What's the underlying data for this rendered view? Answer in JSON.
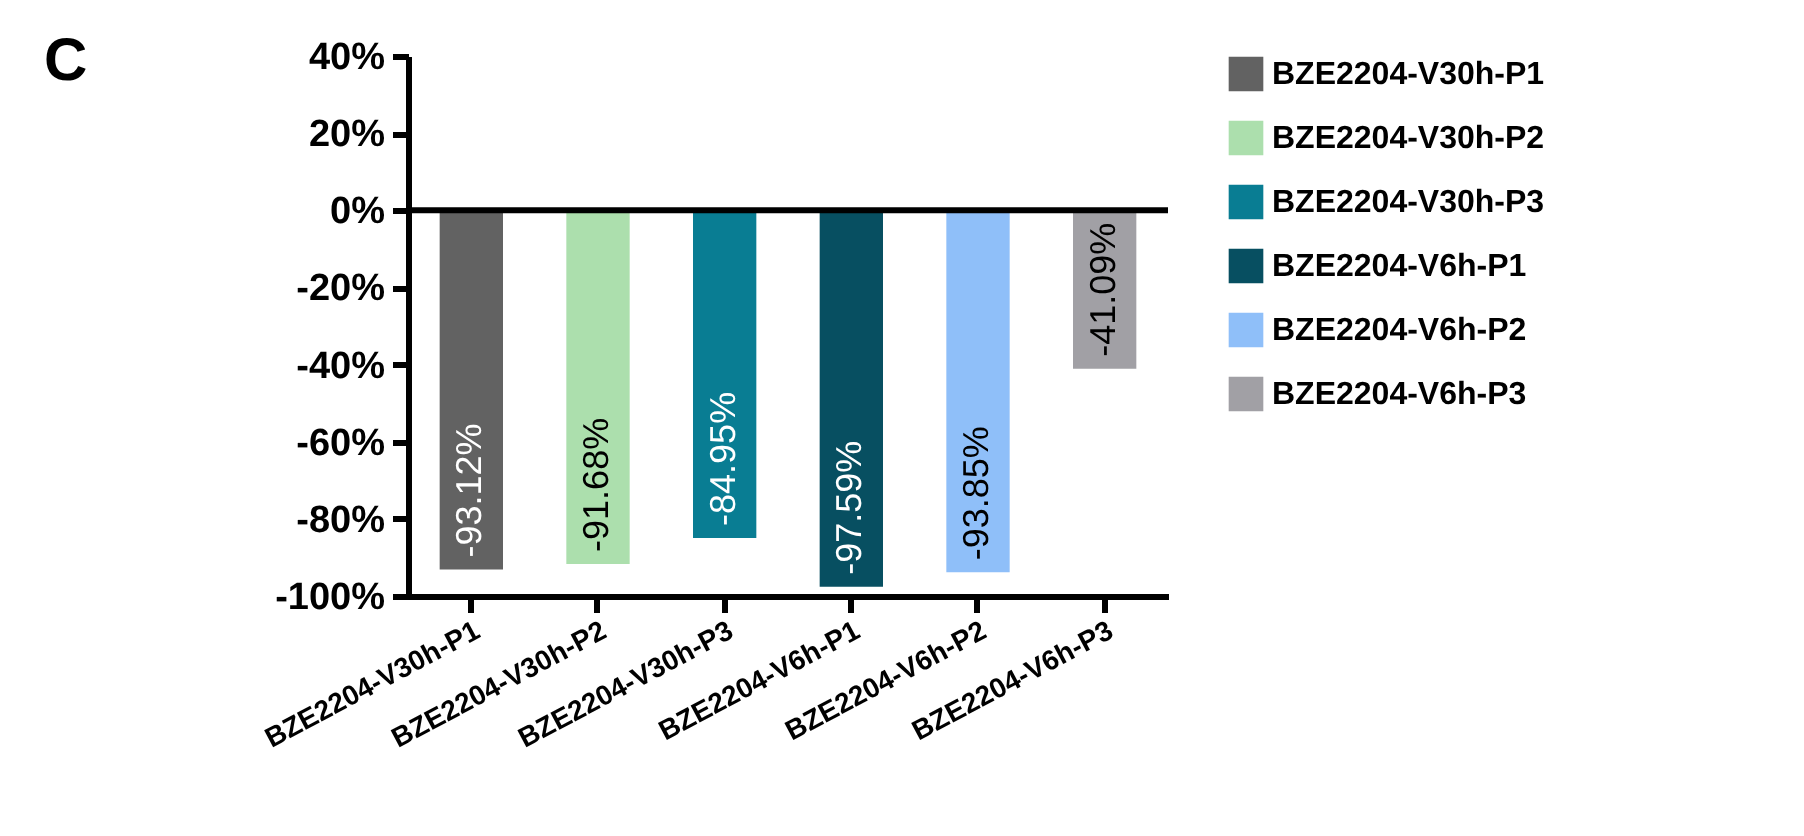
{
  "chart_data": {
    "type": "bar",
    "categories": [
      "BZE2204-V30h-P1",
      "BZE2204-V30h-P2",
      "BZE2204-V30h-P3",
      "BZE2204-V6h-P1",
      "BZE2204-V6h-P2",
      "BZE2204-V6h-P3"
    ],
    "stacked": true,
    "series": [
      {
        "name": "BZE2204-V30h-P1",
        "color": "#626262",
        "values": [
          -93.12,
          null,
          null,
          null,
          null,
          null
        ],
        "value_labels": [
          "-93.12%",
          null,
          null,
          null,
          null,
          null
        ]
      },
      {
        "name": "BZE2204-V30h-P2",
        "color": "#acdfad",
        "values": [
          null,
          -91.68,
          null,
          null,
          null,
          null
        ],
        "value_labels": [
          null,
          "-91.68%",
          null,
          null,
          null,
          null
        ]
      },
      {
        "name": "BZE2204-V30h-P3",
        "color": "#097d93",
        "values": [
          null,
          null,
          -84.95,
          null,
          null,
          null
        ],
        "value_labels": [
          null,
          null,
          "-84.95%",
          null,
          null,
          null
        ]
      },
      {
        "name": "BZE2204-V6h-P1",
        "color": "#074f61",
        "values": [
          null,
          null,
          null,
          -97.59,
          null,
          null
        ],
        "value_labels": [
          null,
          null,
          null,
          "-97.59%",
          null,
          null
        ]
      },
      {
        "name": "BZE2204-V6h-P2",
        "color": "#8fbff9",
        "values": [
          null,
          null,
          null,
          null,
          -93.85,
          null
        ],
        "value_labels": [
          null,
          null,
          null,
          null,
          "-93.85%",
          null
        ]
      },
      {
        "name": "BZE2204-V6h-P3",
        "color": "#a1a0a5",
        "values": [
          null,
          null,
          null,
          null,
          null,
          -41.09
        ],
        "value_labels": [
          null,
          null,
          null,
          null,
          null,
          "-41.09%"
        ]
      }
    ],
    "ylim": [
      -100,
      40
    ],
    "yticks": [
      {
        "value": -100,
        "label": "-100%"
      },
      {
        "value": -80,
        "label": "-80%"
      },
      {
        "value": -60,
        "label": "-60%"
      },
      {
        "value": -40,
        "label": "-40%"
      },
      {
        "value": -20,
        "label": "-20%"
      },
      {
        "value": 0,
        "label": "0%"
      },
      {
        "value": 20,
        "label": "20%"
      },
      {
        "value": 40,
        "label": "40%"
      }
    ],
    "ref_lines": [
      {
        "axis": "y",
        "value": 0
      }
    ],
    "legend": "top right",
    "grid": false,
    "annotations": [
      "C"
    ]
  }
}
